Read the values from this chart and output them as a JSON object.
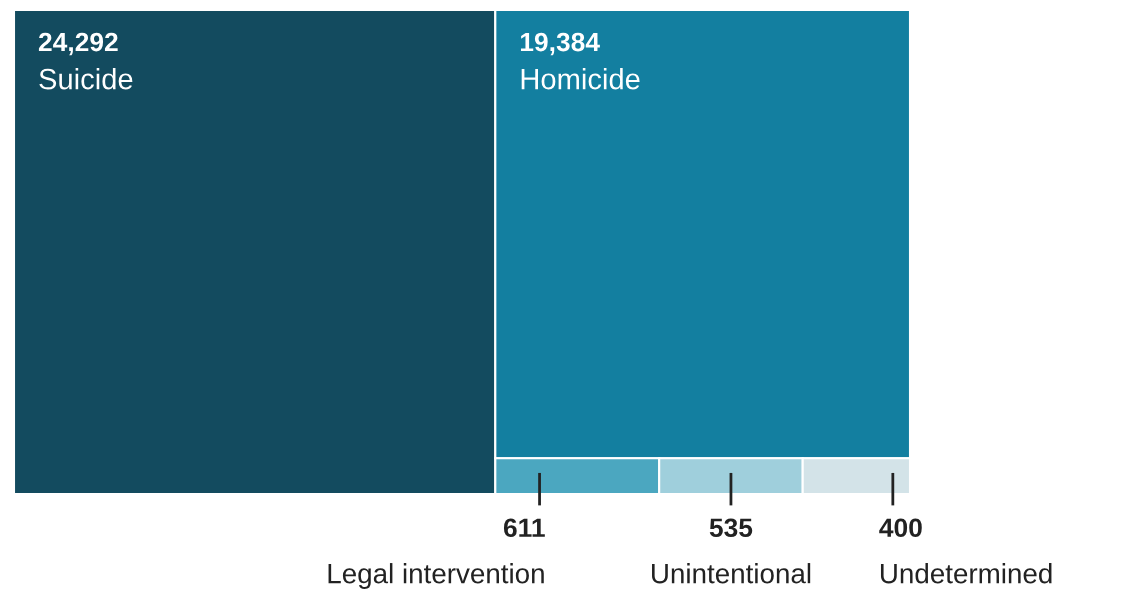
{
  "chart_data": {
    "type": "other",
    "categories": [
      "Suicide",
      "Homicide",
      "Legal intervention",
      "Unintentional",
      "Undetermined"
    ],
    "values": [
      24292,
      19384,
      611,
      535,
      400
    ],
    "value_labels": [
      "24,292",
      "19,384",
      "611",
      "535",
      "400"
    ],
    "colors": [
      "#134b5f",
      "#137fa0",
      "#4ba7c0",
      "#9fcfdc",
      "#d3e3e8"
    ]
  }
}
